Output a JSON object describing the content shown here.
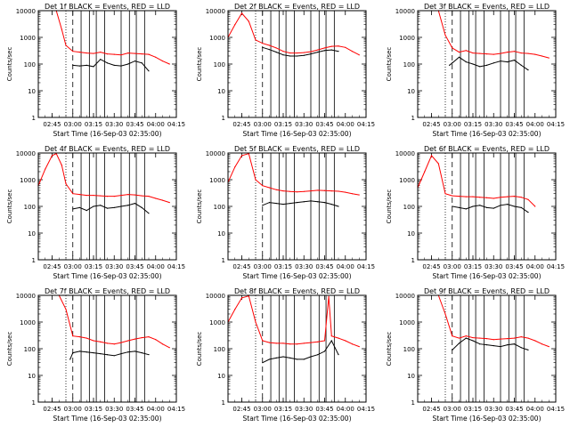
{
  "figure": {
    "ylabel": "Counts/sec",
    "xlabel": "Start Time (16-Sep-03 02:35:00)",
    "x_ticks": [
      "02:45",
      "03:00",
      "03:15",
      "03:30",
      "03:45",
      "04:00",
      "04:15"
    ],
    "y_ticks": [
      "1",
      "10",
      "100",
      "1000",
      "10000"
    ]
  },
  "colors": {
    "events": "#000000",
    "lld": "#ff0000"
  },
  "chart_data": [
    {
      "type": "line",
      "title": "Det 1f BLACK = Events, RED = LLD",
      "ylog": true,
      "ylim": [
        1,
        10000
      ],
      "xlim": [
        "02:35",
        "04:15"
      ],
      "series": [
        {
          "name": "Events",
          "color": "black",
          "x": [
            "02:58",
            "03:00",
            "03:05",
            "03:10",
            "03:15",
            "03:20",
            "03:25",
            "03:30",
            "03:35",
            "03:40",
            "03:45",
            "03:50",
            "03:55"
          ],
          "values": [
            null,
            90,
            85,
            90,
            80,
            150,
            110,
            90,
            85,
            100,
            130,
            110,
            55
          ]
        },
        {
          "name": "LLD",
          "color": "red",
          "x": [
            "02:35",
            "02:40",
            "02:45",
            "02:48",
            "02:52",
            "02:55",
            "03:00",
            "03:05",
            "03:10",
            "03:15",
            "03:20",
            "03:25",
            "03:30",
            "03:35",
            "03:40",
            "03:45",
            "03:50",
            "03:55",
            "04:00",
            "04:05",
            "04:10"
          ],
          "values": [
            null,
            null,
            null,
            10000,
            2000,
            500,
            300,
            280,
            260,
            250,
            280,
            240,
            230,
            220,
            260,
            250,
            240,
            230,
            180,
            130,
            100
          ]
        }
      ]
    },
    {
      "type": "line",
      "title": "Det 2f BLACK = Events, RED = LLD",
      "ylog": true,
      "ylim": [
        1,
        10000
      ],
      "xlim": [
        "02:35",
        "04:15"
      ],
      "series": [
        {
          "name": "Events",
          "color": "black",
          "x": [
            "03:00",
            "03:05",
            "03:10",
            "03:15",
            "03:20",
            "03:25",
            "03:30",
            "03:35",
            "03:40",
            "03:45",
            "03:50",
            "03:55"
          ],
          "values": [
            420,
            350,
            280,
            220,
            200,
            200,
            210,
            240,
            280,
            320,
            340,
            300
          ]
        },
        {
          "name": "LLD",
          "color": "red",
          "x": [
            "02:35",
            "02:40",
            "02:45",
            "02:50",
            "02:55",
            "03:00",
            "03:05",
            "03:10",
            "03:15",
            "03:20",
            "03:25",
            "03:30",
            "03:35",
            "03:40",
            "03:45",
            "03:50",
            "03:55",
            "04:00",
            "04:05",
            "04:10"
          ],
          "values": [
            1000,
            3000,
            8000,
            4000,
            800,
            600,
            500,
            400,
            300,
            260,
            260,
            270,
            290,
            340,
            400,
            460,
            470,
            420,
            300,
            220
          ]
        }
      ]
    },
    {
      "type": "line",
      "title": "Det 3f BLACK = Events, RED = LLD",
      "ylog": true,
      "ylim": [
        1,
        10000
      ],
      "xlim": [
        "02:35",
        "04:15"
      ],
      "series": [
        {
          "name": "Events",
          "color": "black",
          "x": [
            "02:58",
            "03:00",
            "03:05",
            "03:10",
            "03:15",
            "03:20",
            "03:25",
            "03:30",
            "03:35",
            "03:40",
            "03:45",
            "03:50",
            "03:55"
          ],
          "values": [
            90,
            110,
            180,
            120,
            100,
            80,
            90,
            110,
            130,
            120,
            140,
            90,
            60
          ]
        },
        {
          "name": "LLD",
          "color": "red",
          "x": [
            "02:35",
            "02:45",
            "02:50",
            "02:55",
            "03:00",
            "03:05",
            "03:10",
            "03:15",
            "03:20",
            "03:25",
            "03:30",
            "03:35",
            "03:40",
            "03:45",
            "03:50",
            "03:55",
            "04:00",
            "04:05",
            "04:10"
          ],
          "values": [
            null,
            null,
            10000,
            1200,
            400,
            280,
            320,
            260,
            250,
            240,
            230,
            250,
            280,
            300,
            260,
            250,
            230,
            200,
            170
          ]
        }
      ]
    },
    {
      "type": "line",
      "title": "Det 4f BLACK = Events, RED = LLD",
      "ylog": true,
      "ylim": [
        1,
        10000
      ],
      "xlim": [
        "02:35",
        "04:15"
      ],
      "series": [
        {
          "name": "Events",
          "color": "black",
          "x": [
            "03:00",
            "03:05",
            "03:10",
            "03:15",
            "03:20",
            "03:25",
            "03:30",
            "03:35",
            "03:40",
            "03:45",
            "03:50",
            "03:55"
          ],
          "values": [
            80,
            90,
            70,
            100,
            110,
            85,
            90,
            100,
            110,
            130,
            90,
            55
          ]
        },
        {
          "name": "LLD",
          "color": "red",
          "x": [
            "02:35",
            "02:40",
            "02:45",
            "02:48",
            "02:52",
            "02:55",
            "03:00",
            "03:05",
            "03:10",
            "03:15",
            "03:20",
            "03:25",
            "03:30",
            "03:35",
            "03:40",
            "03:45",
            "03:50",
            "03:55",
            "04:00",
            "04:05",
            "04:10"
          ],
          "values": [
            600,
            2500,
            8000,
            9500,
            3500,
            700,
            300,
            280,
            260,
            260,
            250,
            240,
            240,
            260,
            280,
            270,
            250,
            240,
            200,
            170,
            140
          ]
        }
      ]
    },
    {
      "type": "line",
      "title": "Det 5f BLACK = Events, RED = LLD",
      "ylog": true,
      "ylim": [
        1,
        10000
      ],
      "xlim": [
        "02:35",
        "04:15"
      ],
      "series": [
        {
          "name": "Events",
          "color": "black",
          "x": [
            "03:00",
            "03:05",
            "03:10",
            "03:15",
            "03:20",
            "03:25",
            "03:30",
            "03:35",
            "03:40",
            "03:45",
            "03:50",
            "03:55"
          ],
          "values": [
            110,
            140,
            130,
            120,
            130,
            140,
            150,
            160,
            150,
            140,
            120,
            100
          ]
        },
        {
          "name": "LLD",
          "color": "red",
          "x": [
            "02:35",
            "02:40",
            "02:45",
            "02:50",
            "02:55",
            "03:00",
            "03:05",
            "03:10",
            "03:15",
            "03:20",
            "03:25",
            "03:30",
            "03:35",
            "03:40",
            "03:45",
            "03:50",
            "03:55",
            "04:00",
            "04:05",
            "04:10"
          ],
          "values": [
            800,
            3000,
            8000,
            9500,
            1000,
            600,
            500,
            420,
            380,
            360,
            350,
            360,
            380,
            400,
            390,
            380,
            370,
            340,
            300,
            270
          ]
        }
      ]
    },
    {
      "type": "line",
      "title": "Det 6f BLACK = Events, RED = LLD",
      "ylog": true,
      "ylim": [
        1,
        10000
      ],
      "xlim": [
        "02:35",
        "04:15"
      ],
      "series": [
        {
          "name": "Events",
          "color": "black",
          "x": [
            "03:00",
            "03:05",
            "03:10",
            "03:15",
            "03:20",
            "03:25",
            "03:30",
            "03:35",
            "03:40",
            "03:45",
            "03:50",
            "03:55"
          ],
          "values": [
            100,
            90,
            80,
            100,
            110,
            90,
            85,
            110,
            120,
            100,
            90,
            60
          ]
        },
        {
          "name": "LLD",
          "color": "red",
          "x": [
            "02:35",
            "02:40",
            "02:45",
            "02:50",
            "02:55",
            "03:00",
            "03:05",
            "03:10",
            "03:15",
            "03:20",
            "03:25",
            "03:30",
            "03:35",
            "03:40",
            "03:45",
            "03:50",
            "03:55",
            "04:00"
          ],
          "values": [
            500,
            2000,
            8000,
            4000,
            300,
            250,
            240,
            230,
            230,
            220,
            210,
            200,
            220,
            230,
            240,
            220,
            180,
            100
          ]
        }
      ]
    },
    {
      "type": "line",
      "title": "Det 7f BLACK = Events, RED = LLD",
      "ylog": true,
      "ylim": [
        1,
        10000
      ],
      "xlim": [
        "02:35",
        "04:15"
      ],
      "series": [
        {
          "name": "Events",
          "color": "black",
          "x": [
            "02:58",
            "03:00",
            "03:05",
            "03:10",
            "03:15",
            "03:20",
            "03:25",
            "03:30",
            "03:35",
            "03:40",
            "03:45",
            "03:50",
            "03:55"
          ],
          "values": [
            40,
            70,
            80,
            75,
            70,
            65,
            60,
            55,
            65,
            75,
            80,
            70,
            60
          ]
        },
        {
          "name": "LLD",
          "color": "red",
          "x": [
            "02:35",
            "02:45",
            "02:50",
            "02:55",
            "03:00",
            "03:05",
            "03:10",
            "03:15",
            "03:20",
            "03:25",
            "03:30",
            "03:35",
            "03:40",
            "03:45",
            "03:50",
            "03:55",
            "04:00",
            "04:05",
            "04:10"
          ],
          "values": [
            null,
            null,
            10000,
            3000,
            300,
            280,
            250,
            200,
            180,
            160,
            150,
            170,
            200,
            230,
            260,
            280,
            220,
            150,
            110
          ]
        }
      ]
    },
    {
      "type": "line",
      "title": "Det 8f BLACK = Events, RED = LLD",
      "ylog": true,
      "ylim": [
        1,
        10000
      ],
      "xlim": [
        "02:35",
        "04:15"
      ],
      "series": [
        {
          "name": "Events",
          "color": "black",
          "x": [
            "03:00",
            "03:05",
            "03:10",
            "03:15",
            "03:20",
            "03:25",
            "03:30",
            "03:35",
            "03:40",
            "03:45",
            "03:50",
            "03:55"
          ],
          "values": [
            30,
            40,
            45,
            50,
            45,
            40,
            40,
            50,
            60,
            80,
            200,
            60
          ]
        },
        {
          "name": "LLD",
          "color": "red",
          "x": [
            "02:35",
            "02:40",
            "02:45",
            "02:50",
            "02:55",
            "03:00",
            "03:05",
            "03:10",
            "03:15",
            "03:20",
            "03:25",
            "03:30",
            "03:35",
            "03:40",
            "03:45",
            "03:48",
            "03:50",
            "03:55",
            "04:00",
            "04:05",
            "04:10"
          ],
          "values": [
            1000,
            3000,
            8000,
            9500,
            1000,
            200,
            170,
            160,
            160,
            150,
            150,
            160,
            170,
            180,
            200,
            9000,
            300,
            250,
            200,
            150,
            120
          ]
        }
      ]
    },
    {
      "type": "line",
      "title": "Det 9f BLACK = Events, RED = LLD",
      "ylog": true,
      "ylim": [
        1,
        10000
      ],
      "xlim": [
        "02:35",
        "04:15"
      ],
      "series": [
        {
          "name": "Events",
          "color": "black",
          "x": [
            "03:00",
            "03:05",
            "03:10",
            "03:15",
            "03:20",
            "03:25",
            "03:30",
            "03:35",
            "03:40",
            "03:45",
            "03:50",
            "03:55"
          ],
          "values": [
            90,
            160,
            250,
            200,
            150,
            140,
            130,
            120,
            140,
            150,
            110,
            90
          ]
        },
        {
          "name": "LLD",
          "color": "red",
          "x": [
            "02:35",
            "02:45",
            "02:50",
            "02:55",
            "03:00",
            "03:05",
            "03:10",
            "03:15",
            "03:20",
            "03:25",
            "03:30",
            "03:35",
            "03:40",
            "03:45",
            "03:50",
            "03:55",
            "04:00",
            "04:05",
            "04:10"
          ],
          "values": [
            null,
            null,
            10000,
            2000,
            300,
            250,
            300,
            260,
            250,
            240,
            220,
            230,
            240,
            250,
            280,
            250,
            200,
            150,
            120
          ]
        }
      ]
    }
  ]
}
